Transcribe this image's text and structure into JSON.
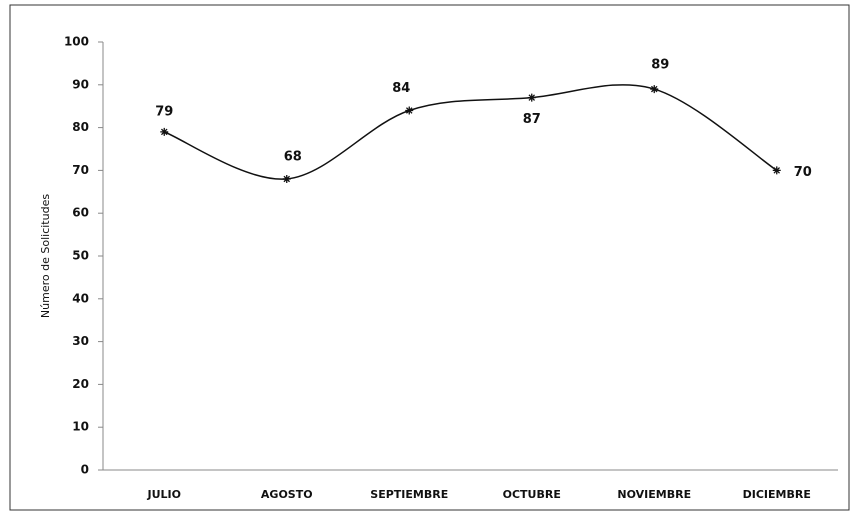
{
  "chart_data": {
    "type": "line",
    "y_label": "Número de Solicitudes",
    "categories": [
      "JULIO",
      "AGOSTO",
      "SEPTIEMBRE",
      "OCTUBRE",
      "NOVIEMBRE",
      "DICIEMBRE"
    ],
    "values": [
      79,
      68,
      84,
      87,
      89,
      70
    ],
    "color": "#111111",
    "smooth": true,
    "ylim": [
      0,
      100
    ],
    "yticks": [
      0,
      10,
      20,
      30,
      40,
      50,
      60,
      70,
      80,
      90,
      100
    ],
    "grid": false
  }
}
